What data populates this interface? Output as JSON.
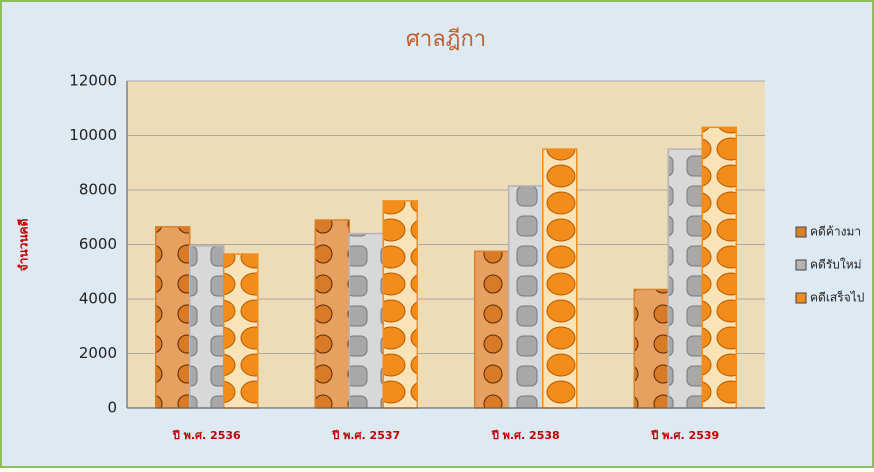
{
  "chart_data": {
    "type": "bar",
    "title": "ศาลฎีกา",
    "y_label": "จำนวนคดี",
    "categories": [
      "ปี พ.ศ. 2536",
      "ปี พ.ศ. 2537",
      "ปี พ.ศ. 2538",
      "ปี พ.ศ. 2539"
    ],
    "series": [
      {
        "name": "คดีค้างมา",
        "color": "#d9822b",
        "values": [
          6650,
          6900,
          5750,
          4350
        ]
      },
      {
        "name": "คดีรับใหม่",
        "color": "#b5b5b5",
        "values": [
          5950,
          6400,
          8150,
          9500
        ]
      },
      {
        "name": "คดีเสร็จไป",
        "color": "#f28c1a",
        "values": [
          5650,
          7600,
          9500,
          10300
        ]
      }
    ],
    "ylim": [
      0,
      12000
    ],
    "yticks": [
      0,
      2000,
      4000,
      6000,
      8000,
      10000,
      12000
    ],
    "grid": true,
    "legend": "right"
  }
}
